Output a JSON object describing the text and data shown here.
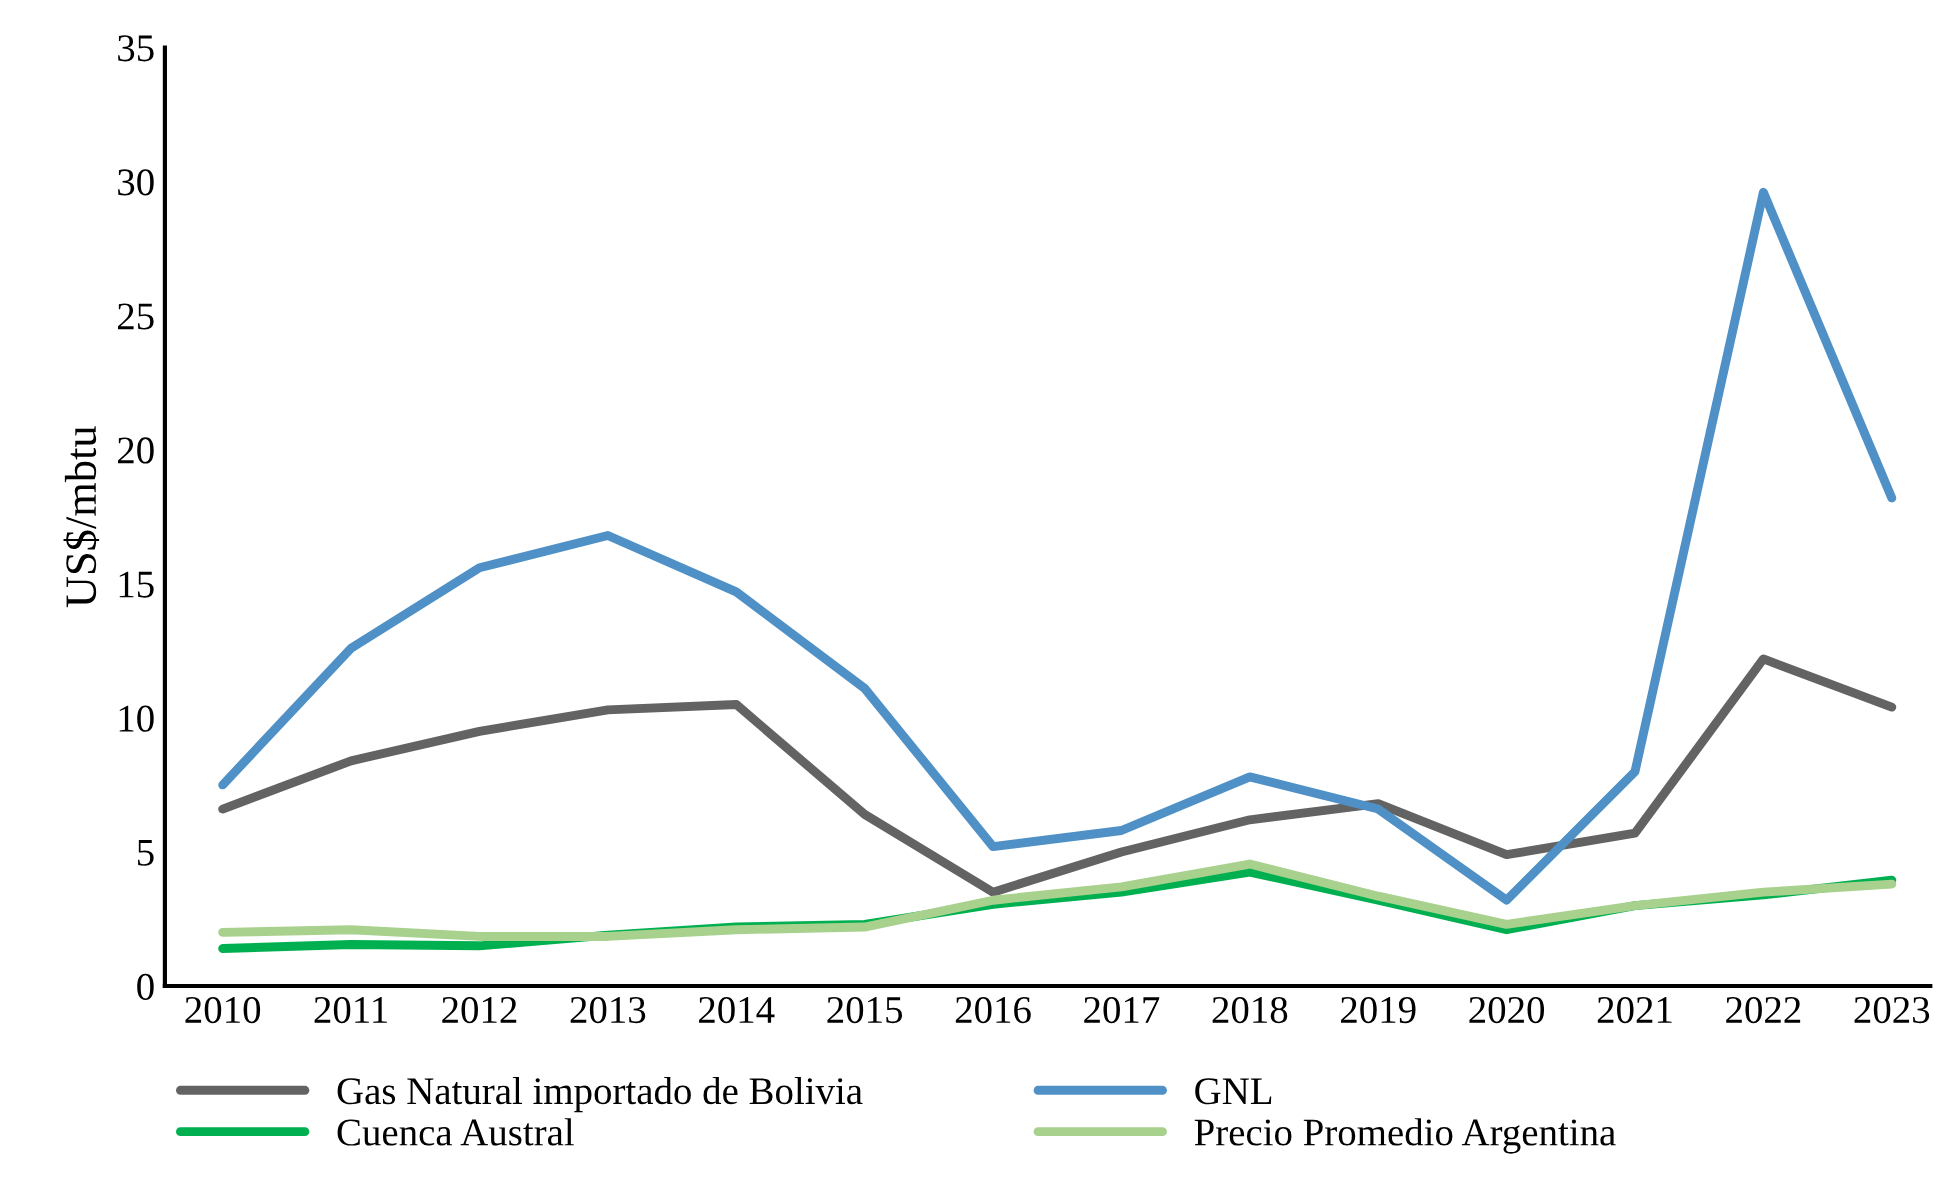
{
  "chart_data": {
    "type": "line",
    "ylabel": "US$/mbtu",
    "categories": [
      "2010",
      "2011",
      "2012",
      "2013",
      "2014",
      "2015",
      "2016",
      "2017",
      "2018",
      "2019",
      "2020",
      "2021",
      "2022",
      "2023"
    ],
    "ylim": [
      0,
      35
    ],
    "yticks": [
      0,
      5,
      10,
      15,
      20,
      25,
      30,
      35
    ],
    "grid": false,
    "legend": "bottom",
    "marker": "none",
    "line_style": "solid",
    "series": [
      {
        "name": "Gas Natural importado de Bolivia",
        "color": "#636363",
        "values": [
          6.6,
          8.4,
          9.5,
          10.3,
          10.5,
          6.4,
          3.5,
          5.0,
          6.2,
          6.8,
          4.9,
          5.7,
          12.2,
          10.4
        ]
      },
      {
        "name": "GNL",
        "color": "#4f91c6",
        "values": [
          7.5,
          12.6,
          15.6,
          16.8,
          14.7,
          11.1,
          5.2,
          5.8,
          7.8,
          6.6,
          3.2,
          8.0,
          29.6,
          18.2
        ]
      },
      {
        "name": "Cuenca Austral",
        "color": "#00b050",
        "values": [
          1.4,
          1.55,
          1.5,
          1.9,
          2.2,
          2.3,
          3.05,
          3.5,
          4.25,
          3.2,
          2.1,
          3.0,
          3.4,
          3.95
        ]
      },
      {
        "name": "Precio Promedio Argentina",
        "color": "#a9d18e",
        "values": [
          2.0,
          2.1,
          1.85,
          1.85,
          2.1,
          2.2,
          3.2,
          3.7,
          4.55,
          3.35,
          2.3,
          3.0,
          3.5,
          3.8
        ]
      }
    ]
  }
}
